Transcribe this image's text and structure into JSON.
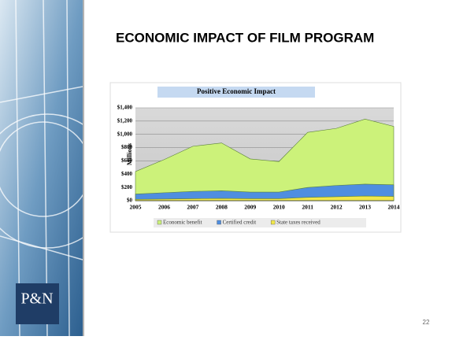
{
  "slide": {
    "title": "ECONOMIC IMPACT OF FILM PROGRAM",
    "page_number": "22",
    "logo": "P&N"
  },
  "chart_data": {
    "type": "area",
    "title": "Positive Economic Impact",
    "y_label": "Millions",
    "categories": [
      "2005",
      "2006",
      "2007",
      "2008",
      "2009",
      "2010",
      "2011",
      "2012",
      "2013",
      "2014"
    ],
    "series": [
      {
        "name": "Economic benefit",
        "color": "#ccf27a",
        "values": [
          440,
          620,
          820,
          870,
          630,
          590,
          1030,
          1090,
          1230,
          1120
        ]
      },
      {
        "name": "Certified credit",
        "color": "#4f8ee0",
        "values": [
          100,
          120,
          140,
          150,
          130,
          130,
          200,
          230,
          250,
          240
        ]
      },
      {
        "name": "State taxes received",
        "color": "#f2e84a",
        "values": [
          20,
          25,
          30,
          35,
          30,
          30,
          50,
          60,
          70,
          65
        ]
      }
    ],
    "ylim": [
      0,
      1400
    ],
    "yticks": [
      {
        "value": 0,
        "label": "$0"
      },
      {
        "value": 200,
        "label": "$200"
      },
      {
        "value": 400,
        "label": "$400"
      },
      {
        "value": 600,
        "label": "$600"
      },
      {
        "value": 800,
        "label": "$800"
      },
      {
        "value": 1000,
        "label": "$1,000"
      },
      {
        "value": 1200,
        "label": "$1,200"
      },
      {
        "value": 1400,
        "label": "$1,400"
      }
    ],
    "grid": true
  }
}
